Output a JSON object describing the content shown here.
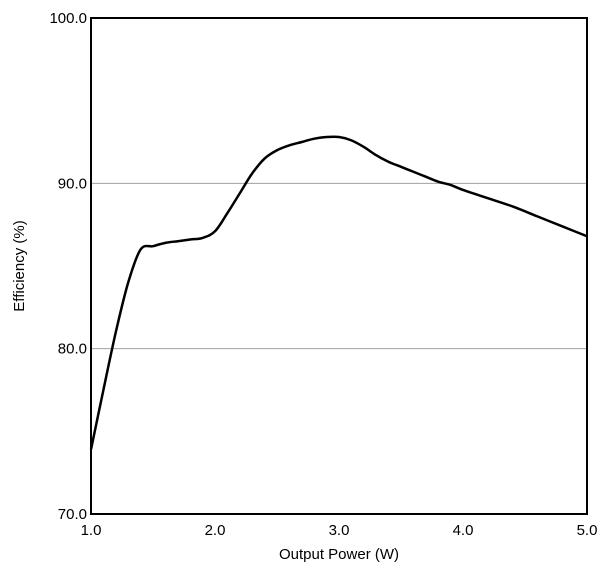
{
  "chart_data": {
    "type": "line",
    "title": "",
    "xlabel": "Output Power (W)",
    "ylabel": "Efficiency (%)",
    "xlim": [
      1.0,
      5.0
    ],
    "ylim": [
      70.0,
      100.0
    ],
    "x_ticks": [
      1.0,
      2.0,
      3.0,
      4.0,
      5.0
    ],
    "x_tick_labels": [
      "1.0",
      "2.0",
      "3.0",
      "4.0",
      "5.0"
    ],
    "y_ticks": [
      70.0,
      80.0,
      90.0,
      100.0
    ],
    "y_tick_labels": [
      "70.0",
      "80.0",
      "90.0",
      "100.0"
    ],
    "grid": "horizontal",
    "legend": "none",
    "line_color": "#000000",
    "grid_color": "#a0a0a0",
    "series": [
      {
        "x": [
          1.0,
          1.1,
          1.2,
          1.3,
          1.4,
          1.5,
          1.6,
          1.7,
          1.8,
          1.9,
          2.0,
          2.1,
          2.2,
          2.3,
          2.4,
          2.5,
          2.6,
          2.7,
          2.8,
          2.9,
          3.0,
          3.1,
          3.2,
          3.3,
          3.4,
          3.5,
          3.6,
          3.7,
          3.8,
          3.9,
          4.0,
          4.2,
          4.4,
          4.6,
          4.8,
          5.0
        ],
        "values": [
          73.9,
          77.5,
          81.0,
          84.0,
          86.0,
          86.2,
          86.4,
          86.5,
          86.6,
          86.7,
          87.1,
          88.2,
          89.4,
          90.6,
          91.5,
          92.0,
          92.3,
          92.5,
          92.7,
          92.8,
          92.8,
          92.6,
          92.2,
          91.7,
          91.3,
          91.0,
          90.7,
          90.4,
          90.1,
          89.9,
          89.6,
          89.1,
          88.6,
          88.0,
          87.4,
          86.8
        ]
      }
    ]
  }
}
